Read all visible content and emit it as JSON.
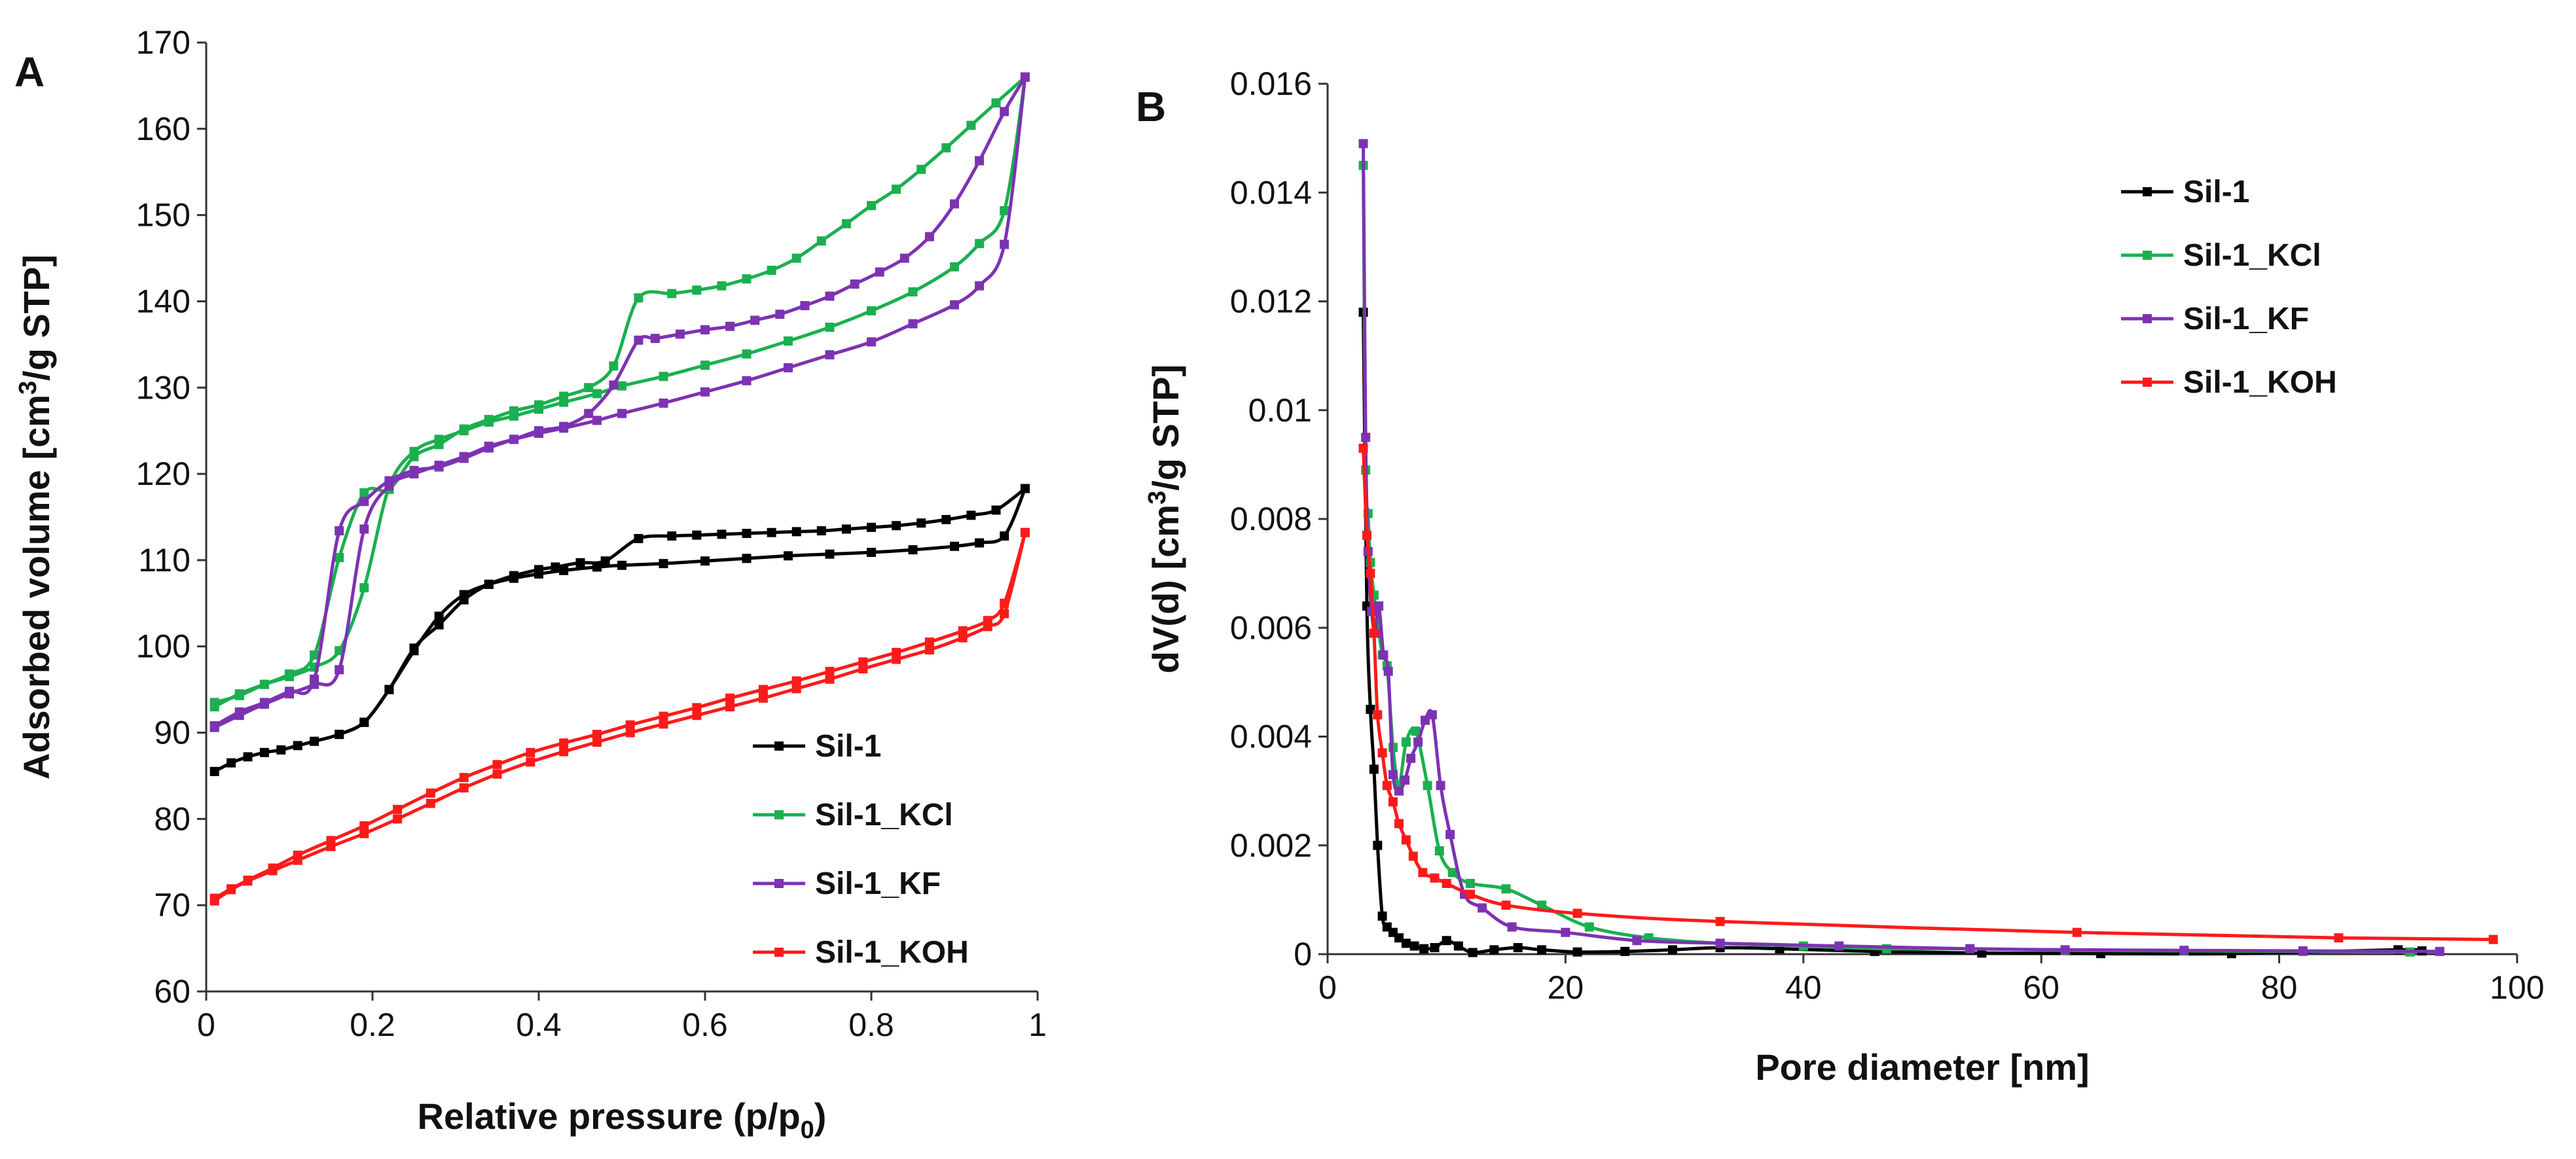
{
  "chart_data": [
    {
      "panel": "A",
      "type": "line",
      "xlabel": "Relative pressure (p/p",
      "xlabel_sub": "0",
      "xlabel_end": ")",
      "ylabel": "Adsorbed volume [cm",
      "ylabel_sup": "3",
      "ylabel_end": "/g STP]",
      "xlim": [
        0,
        1
      ],
      "ylim": [
        60,
        170
      ],
      "xticks": [
        0,
        0.2,
        0.4,
        0.6,
        0.8,
        1
      ],
      "xtick_labels": [
        "0",
        "0.2",
        "0.4",
        "0.6",
        "0.8",
        "1"
      ],
      "yticks": [
        60,
        70,
        80,
        90,
        100,
        110,
        120,
        130,
        140,
        150,
        160,
        170
      ],
      "ytick_labels": [
        "60",
        "70",
        "80",
        "90",
        "100",
        "110",
        "120",
        "130",
        "140",
        "150",
        "160",
        "170"
      ],
      "legend_position": "bottom-right",
      "series": [
        {
          "name": "Sil-1",
          "color": "#000000",
          "adsorption": {
            "x": [
              0.01,
              0.03,
              0.05,
              0.07,
              0.09,
              0.11,
              0.13,
              0.16,
              0.19,
              0.22,
              0.25,
              0.28,
              0.31,
              0.34,
              0.37,
              0.4,
              0.43,
              0.47,
              0.5,
              0.55,
              0.6,
              0.65,
              0.7,
              0.75,
              0.8,
              0.85,
              0.9,
              0.93,
              0.96,
              0.985
            ],
            "y": [
              85.5,
              86.5,
              87.2,
              87.7,
              88.0,
              88.5,
              89.0,
              89.8,
              91.2,
              95.0,
              99.5,
              103.5,
              106.0,
              107.2,
              107.9,
              108.4,
              108.8,
              109.2,
              109.4,
              109.6,
              109.9,
              110.2,
              110.5,
              110.7,
              110.9,
              111.2,
              111.6,
              112.0,
              112.8,
              118.3
            ]
          },
          "desorption": {
            "x": [
              0.985,
              0.95,
              0.92,
              0.89,
              0.86,
              0.83,
              0.8,
              0.77,
              0.74,
              0.71,
              0.68,
              0.65,
              0.62,
              0.59,
              0.56,
              0.52,
              0.48,
              0.45,
              0.42,
              0.4,
              0.37,
              0.34,
              0.31,
              0.28,
              0.25,
              0.22,
              0.19,
              0.16
            ],
            "y": [
              118.3,
              115.8,
              115.2,
              114.7,
              114.3,
              114.0,
              113.8,
              113.6,
              113.4,
              113.3,
              113.2,
              113.1,
              113.0,
              112.9,
              112.8,
              112.5,
              109.9,
              109.7,
              109.2,
              108.9,
              108.2,
              107.2,
              105.4,
              102.5,
              99.8,
              95.0,
              91.2,
              89.8
            ]
          }
        },
        {
          "name": "Sil-1_KCl",
          "color": "#1ab04f",
          "adsorption": {
            "x": [
              0.01,
              0.04,
              0.07,
              0.1,
              0.13,
              0.16,
              0.19,
              0.22,
              0.25,
              0.28,
              0.31,
              0.34,
              0.37,
              0.4,
              0.43,
              0.47,
              0.5,
              0.55,
              0.6,
              0.65,
              0.7,
              0.75,
              0.8,
              0.85,
              0.9,
              0.93,
              0.96,
              0.985
            ],
            "y": [
              93.0,
              94.5,
              95.6,
              96.5,
              97.6,
              99.5,
              106.8,
              118.5,
              122.6,
              124.0,
              125.0,
              126.0,
              126.7,
              127.5,
              128.3,
              129.3,
              130.2,
              131.3,
              132.6,
              133.9,
              135.4,
              137.0,
              138.9,
              141.1,
              144.0,
              146.7,
              150.5,
              166.0
            ]
          },
          "desorption": {
            "x": [
              0.985,
              0.95,
              0.92,
              0.89,
              0.86,
              0.83,
              0.8,
              0.77,
              0.74,
              0.71,
              0.68,
              0.65,
              0.62,
              0.59,
              0.56,
              0.52,
              0.49,
              0.46,
              0.43,
              0.4,
              0.37,
              0.34,
              0.31,
              0.28,
              0.25,
              0.22,
              0.19,
              0.16,
              0.13,
              0.1,
              0.07,
              0.04,
              0.01
            ],
            "y": [
              166.0,
              163.0,
              160.4,
              157.8,
              155.3,
              153.0,
              151.1,
              149.0,
              147.0,
              145.0,
              143.6,
              142.6,
              141.8,
              141.3,
              140.9,
              140.4,
              132.5,
              130.0,
              129.0,
              128.0,
              127.3,
              126.3,
              125.2,
              123.4,
              122.0,
              118.2,
              117.8,
              110.3,
              99.0,
              96.8,
              95.6,
              94.3,
              93.5
            ]
          }
        },
        {
          "name": "Sil-1_KF",
          "color": "#7d32b2",
          "adsorption": {
            "x": [
              0.01,
              0.04,
              0.07,
              0.1,
              0.13,
              0.16,
              0.19,
              0.22,
              0.25,
              0.28,
              0.31,
              0.34,
              0.37,
              0.4,
              0.43,
              0.47,
              0.5,
              0.55,
              0.6,
              0.65,
              0.7,
              0.75,
              0.8,
              0.85,
              0.9,
              0.93,
              0.96,
              0.985
            ],
            "y": [
              90.6,
              92.0,
              93.3,
              94.5,
              95.6,
              97.3,
              113.6,
              118.6,
              120.0,
              121.0,
              122.0,
              123.2,
              124.0,
              124.7,
              125.3,
              126.2,
              127.0,
              128.2,
              129.5,
              130.8,
              132.3,
              133.8,
              135.3,
              137.4,
              139.6,
              141.8,
              146.6,
              166.0
            ]
          },
          "desorption": {
            "x": [
              0.985,
              0.96,
              0.93,
              0.9,
              0.87,
              0.84,
              0.81,
              0.78,
              0.75,
              0.72,
              0.69,
              0.66,
              0.63,
              0.6,
              0.57,
              0.54,
              0.52,
              0.49,
              0.46,
              0.43,
              0.4,
              0.37,
              0.34,
              0.31,
              0.28,
              0.25,
              0.22,
              0.19,
              0.16,
              0.13,
              0.1,
              0.07,
              0.04,
              0.01
            ],
            "y": [
              166.0,
              162.0,
              156.3,
              151.3,
              147.5,
              145.0,
              143.4,
              142.0,
              140.6,
              139.5,
              138.5,
              137.8,
              137.1,
              136.7,
              136.2,
              135.7,
              135.5,
              130.3,
              127.0,
              125.5,
              125.0,
              124.0,
              123.0,
              121.8,
              120.8,
              120.4,
              119.2,
              116.8,
              113.4,
              96.2,
              94.8,
              93.5,
              92.4,
              90.8
            ]
          }
        },
        {
          "name": "Sil-1_KOH",
          "color": "#ff1a1a",
          "adsorption": {
            "x": [
              0.01,
              0.03,
              0.05,
              0.08,
              0.11,
              0.15,
              0.19,
              0.23,
              0.27,
              0.31,
              0.35,
              0.39,
              0.43,
              0.47,
              0.51,
              0.55,
              0.59,
              0.63,
              0.67,
              0.71,
              0.75,
              0.79,
              0.83,
              0.87,
              0.91,
              0.94,
              0.96,
              0.985
            ],
            "y": [
              70.5,
              71.8,
              72.8,
              74.0,
              75.2,
              76.8,
              78.3,
              80.0,
              81.8,
              83.6,
              85.2,
              86.6,
              87.8,
              88.9,
              90.0,
              91.0,
              92.0,
              93.0,
              94.0,
              95.1,
              96.2,
              97.4,
              98.5,
              99.6,
              101.0,
              102.3,
              103.8,
              113.2
            ]
          },
          "desorption": {
            "x": [
              0.985,
              0.96,
              0.94,
              0.91,
              0.87,
              0.83,
              0.79,
              0.75,
              0.71,
              0.67,
              0.63,
              0.59,
              0.55,
              0.51,
              0.47,
              0.43,
              0.39,
              0.35,
              0.31,
              0.27,
              0.23,
              0.19,
              0.15,
              0.11,
              0.08,
              0.05,
              0.03,
              0.01
            ],
            "y": [
              113.2,
              105.0,
              103.0,
              101.8,
              100.5,
              99.3,
              98.2,
              97.1,
              96.0,
              95.0,
              94.0,
              92.9,
              91.9,
              90.9,
              89.8,
              88.8,
              87.7,
              86.3,
              84.8,
              83.0,
              81.1,
              79.2,
              77.5,
              75.8,
              74.3,
              72.9,
              71.9,
              70.8
            ]
          }
        }
      ]
    },
    {
      "panel": "B",
      "type": "line",
      "xlabel": "Pore diameter [nm]",
      "ylabel": "dV(d) [cm",
      "ylabel_sup": "3",
      "ylabel_end": "/g STP]",
      "xlim": [
        0,
        100
      ],
      "ylim": [
        0,
        0.016
      ],
      "xticks": [
        0,
        20,
        40,
        60,
        80,
        100
      ],
      "xtick_labels": [
        "0",
        "20",
        "40",
        "60",
        "80",
        "100"
      ],
      "yticks": [
        0,
        0.002,
        0.004,
        0.006,
        0.008,
        0.01,
        0.012,
        0.014,
        0.016
      ],
      "ytick_labels": [
        "0",
        "0.002",
        "0.004",
        "0.006",
        "0.008",
        "0.01",
        "0.012",
        "0.014",
        "0.016"
      ],
      "legend_position": "top-right",
      "series": [
        {
          "name": "Sil-1",
          "color": "#000000",
          "x": [
            3.0,
            3.3,
            3.6,
            3.9,
            4.2,
            4.6,
            5.0,
            5.5,
            6.0,
            6.6,
            7.3,
            8.1,
            9.0,
            10.0,
            11.0,
            12.2,
            14.0,
            16.0,
            18.0,
            21.0,
            25.0,
            29.0,
            33.0,
            38.0,
            46.0,
            55.0,
            65.0,
            76.0,
            90.0,
            92.0
          ],
          "y": [
            0.0118,
            0.0064,
            0.0045,
            0.0034,
            0.002,
            0.0007,
            0.0005,
            0.0004,
            0.0003,
            0.0002,
            0.00015,
            0.0001,
            0.00012,
            0.00025,
            0.00015,
            3e-05,
            8e-05,
            0.00012,
            8e-05,
            4e-05,
            5e-05,
            8e-05,
            0.00012,
            0.0001,
            5e-05,
            2e-05,
            1e-05,
            1e-05,
            8e-05,
            6e-05
          ]
        },
        {
          "name": "Sil-1_KCl",
          "color": "#1ab04f",
          "x": [
            3.0,
            3.2,
            3.4,
            3.6,
            3.9,
            4.2,
            4.6,
            5.0,
            5.5,
            6.0,
            6.6,
            7.4,
            8.4,
            9.4,
            10.5,
            12.0,
            15.0,
            18.0,
            22.0,
            27.0,
            33.0,
            40.0,
            47.0,
            54.0,
            62.0,
            72.0,
            82.0,
            91.0
          ],
          "y": [
            0.0145,
            0.0089,
            0.0081,
            0.0072,
            0.0066,
            0.0061,
            0.0055,
            0.0053,
            0.0038,
            0.0031,
            0.0039,
            0.0041,
            0.0031,
            0.0019,
            0.0015,
            0.0013,
            0.0012,
            0.0009,
            0.0005,
            0.0003,
            0.0002,
            0.00015,
            0.0001,
            0.0001,
            7e-05,
            6e-05,
            5e-05,
            4e-05
          ]
        },
        {
          "name": "Sil-1_KF",
          "color": "#7d32b2",
          "x": [
            3.0,
            3.2,
            3.4,
            3.7,
            4.0,
            4.3,
            4.7,
            5.1,
            5.5,
            6.0,
            6.5,
            7.0,
            7.6,
            8.2,
            8.8,
            9.5,
            10.3,
            11.5,
            13.0,
            15.5,
            20.0,
            26.0,
            33.0,
            43.0,
            54.0,
            62.0,
            72.0,
            82.0,
            93.5
          ],
          "y": [
            0.0149,
            0.0095,
            0.0074,
            0.0063,
            0.0059,
            0.0064,
            0.0055,
            0.0052,
            0.0033,
            0.003,
            0.0032,
            0.0036,
            0.0039,
            0.0043,
            0.0044,
            0.0031,
            0.0022,
            0.0011,
            0.00085,
            0.0005,
            0.0004,
            0.00025,
            0.0002,
            0.00015,
            0.0001,
            8e-05,
            7e-05,
            6e-05,
            5e-05
          ]
        },
        {
          "name": "Sil-1_KOH",
          "color": "#ff1a1a",
          "x": [
            3.0,
            3.3,
            3.6,
            3.9,
            4.2,
            4.6,
            5.0,
            5.5,
            6.0,
            6.6,
            7.2,
            8.0,
            9.0,
            10.0,
            12.0,
            15.0,
            21.0,
            33.0,
            63.0,
            85.0,
            98.0
          ],
          "y": [
            0.0093,
            0.0077,
            0.007,
            0.0059,
            0.0044,
            0.0037,
            0.0031,
            0.0028,
            0.0024,
            0.0021,
            0.0018,
            0.0015,
            0.0014,
            0.0013,
            0.0011,
            0.0009,
            0.00075,
            0.0006,
            0.0004,
            0.0003,
            0.00027
          ]
        }
      ]
    }
  ]
}
